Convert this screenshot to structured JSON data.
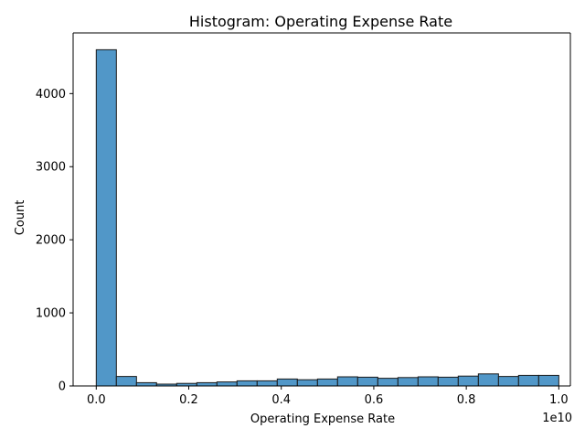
{
  "chart_data": {
    "type": "bar",
    "title": "Histogram:  Operating Expense Rate",
    "xlabel": "Operating Expense Rate",
    "ylabel": "Count",
    "x_offset_label": "1e10",
    "bar_color": "#5197c8",
    "edge_color": "#1a1a1a",
    "grid": false,
    "xlim": [
      -0.05,
      1.025
    ],
    "ylim": [
      0,
      4830
    ],
    "xticks": [
      0.0,
      0.2,
      0.4,
      0.6,
      0.8,
      1.0
    ],
    "xtick_labels": [
      "0.0",
      "0.2",
      "0.4",
      "0.6",
      "0.8",
      "1.0"
    ],
    "yticks": [
      0,
      1000,
      2000,
      3000,
      4000
    ],
    "ytick_labels": [
      "0",
      "1000",
      "2000",
      "3000",
      "4000"
    ],
    "bin_edges": [
      0.0,
      0.0435,
      0.087,
      0.1304,
      0.1739,
      0.2174,
      0.2609,
      0.3043,
      0.3478,
      0.3913,
      0.4348,
      0.4783,
      0.5217,
      0.5652,
      0.6087,
      0.6522,
      0.6957,
      0.7391,
      0.7826,
      0.8261,
      0.8696,
      0.913,
      0.9565,
      1.0
    ],
    "values": [
      4600,
      130,
      45,
      25,
      35,
      45,
      55,
      70,
      70,
      95,
      85,
      95,
      125,
      120,
      105,
      115,
      125,
      120,
      135,
      165,
      130,
      145,
      145
    ]
  }
}
